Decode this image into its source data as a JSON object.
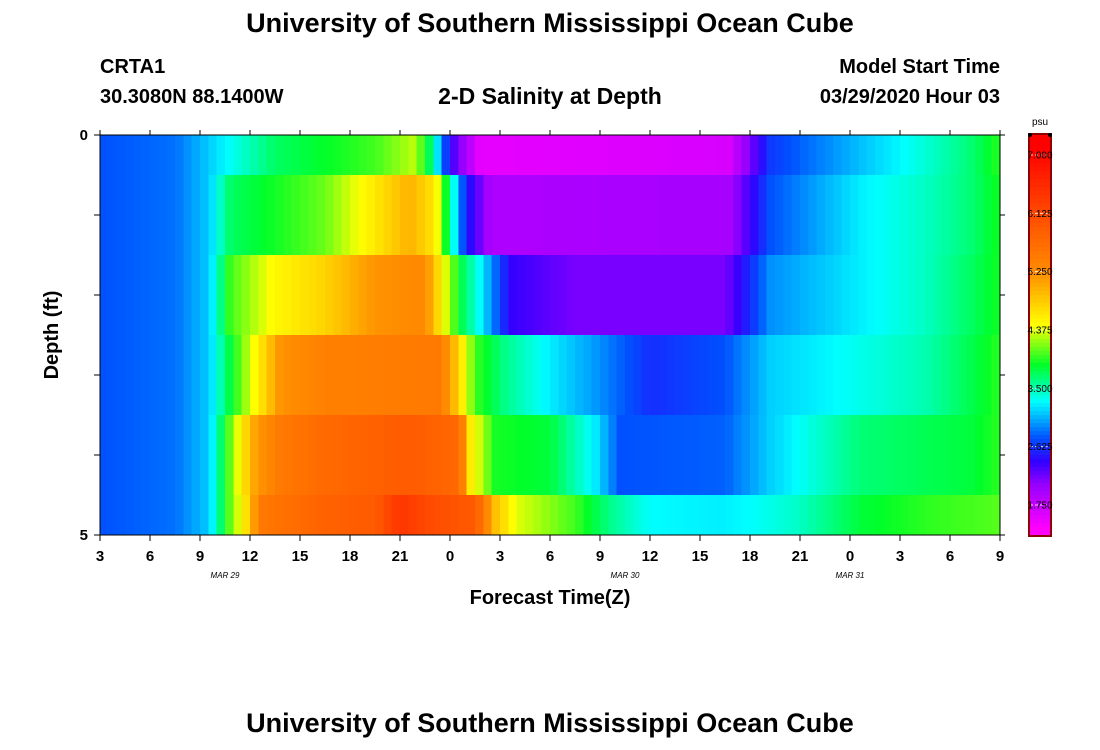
{
  "header": {
    "title": "University of Southern Mississippi Ocean Cube",
    "station_id": "CRTA1",
    "station_coords": "30.3080N 88.1400W",
    "chart_title": "2-D Salinity at Depth",
    "model_start_label": "Model Start Time",
    "model_start_value": "03/29/2020 Hour 03"
  },
  "footer": {
    "title": "University of Southern Mississippi Ocean Cube"
  },
  "chart_data": {
    "type": "heatmap",
    "title": "2-D Salinity at Depth",
    "xlabel": "Forecast Time(Z)",
    "ylabel": "Depth (ft)",
    "x_tick_labels": [
      "3",
      "6",
      "9",
      "12",
      "15",
      "18",
      "21",
      "0",
      "3",
      "6",
      "9",
      "12",
      "15",
      "18",
      "21",
      "0",
      "3",
      "6",
      "9"
    ],
    "date_labels": [
      {
        "text": "MAR  29",
        "tick_index": 2.5
      },
      {
        "text": "MAR  30",
        "tick_index": 10.5
      },
      {
        "text": "MAR  31",
        "tick_index": 15.0
      }
    ],
    "y_tick_labels": [
      "0",
      "5"
    ],
    "ylim": [
      0,
      5
    ],
    "y_minor_ticks": 5,
    "colorbar": {
      "unit": "psu",
      "min": 1.3,
      "max": 7.3,
      "tick_values": [
        1.75,
        2.625,
        3.5,
        4.375,
        5.25,
        6.125,
        7.0
      ],
      "tick_labels": [
        "1.750",
        "2.625",
        "3.500",
        "4.375",
        "5.250",
        "6.125",
        "7.000"
      ]
    },
    "rows": [
      {
        "depth_range": [
          0,
          0.5
        ],
        "knots": [
          [
            0,
            2.75
          ],
          [
            1.5,
            2.85
          ],
          [
            2.2,
            3.15
          ],
          [
            3.5,
            3.7
          ],
          [
            5.5,
            4.0
          ],
          [
            6.3,
            4.3
          ],
          [
            6.6,
            3.7
          ],
          [
            7,
            2.4
          ],
          [
            7.6,
            1.55
          ],
          [
            12.6,
            1.65
          ],
          [
            13.4,
            2.65
          ],
          [
            15.2,
            3.1
          ],
          [
            16.5,
            3.4
          ],
          [
            17.4,
            3.65
          ],
          [
            18,
            3.95
          ]
        ]
      },
      {
        "depth_range": [
          0.5,
          1.5
        ],
        "knots": [
          [
            0,
            2.75
          ],
          [
            1.5,
            2.85
          ],
          [
            2.2,
            3.15
          ],
          [
            2.6,
            3.7
          ],
          [
            4.5,
            4.1
          ],
          [
            5.5,
            4.6
          ],
          [
            6.2,
            5.0
          ],
          [
            6.7,
            4.6
          ],
          [
            7,
            3.6
          ],
          [
            7.3,
            2.6
          ],
          [
            7.8,
            1.9
          ],
          [
            12.6,
            1.95
          ],
          [
            13.4,
            2.75
          ],
          [
            15.2,
            3.25
          ],
          [
            16.5,
            3.45
          ],
          [
            17.4,
            3.65
          ],
          [
            18,
            3.9
          ]
        ]
      },
      {
        "depth_range": [
          1.5,
          2.5
        ],
        "knots": [
          [
            0,
            2.75
          ],
          [
            1.5,
            2.85
          ],
          [
            2.2,
            3.15
          ],
          [
            2.6,
            4.0
          ],
          [
            3.5,
            4.5
          ],
          [
            4.5,
            4.75
          ],
          [
            5.5,
            5.2
          ],
          [
            6.5,
            5.3
          ],
          [
            6.9,
            4.4
          ],
          [
            7.2,
            3.8
          ],
          [
            7.6,
            3.3
          ],
          [
            8.2,
            2.4
          ],
          [
            9.5,
            2.15
          ],
          [
            12.5,
            2.15
          ],
          [
            13.4,
            2.95
          ],
          [
            15.2,
            3.25
          ],
          [
            16.5,
            3.45
          ],
          [
            17.4,
            3.7
          ],
          [
            18,
            3.9
          ]
        ]
      },
      {
        "depth_range": [
          2.5,
          3.5
        ],
        "knots": [
          [
            0,
            2.75
          ],
          [
            1.5,
            2.85
          ],
          [
            2.2,
            3.15
          ],
          [
            2.6,
            3.8
          ],
          [
            3.2,
            4.6
          ],
          [
            3.6,
            5.2
          ],
          [
            4.5,
            5.4
          ],
          [
            6.8,
            5.5
          ],
          [
            7.1,
            4.9
          ],
          [
            7.5,
            4.0
          ],
          [
            8.1,
            3.6
          ],
          [
            9,
            3.25
          ],
          [
            10,
            2.95
          ],
          [
            11,
            2.6
          ],
          [
            12.5,
            2.75
          ],
          [
            13.4,
            3.15
          ],
          [
            15.2,
            3.35
          ],
          [
            16.5,
            3.5
          ],
          [
            17.4,
            3.75
          ],
          [
            18,
            3.95
          ]
        ]
      },
      {
        "depth_range": [
          3.5,
          4.5
        ],
        "knots": [
          [
            0,
            2.75
          ],
          [
            1.5,
            2.85
          ],
          [
            2.2,
            3.15
          ],
          [
            2.6,
            4.1
          ],
          [
            2.8,
            4.5
          ],
          [
            3.1,
            5.1
          ],
          [
            3.6,
            5.5
          ],
          [
            4.5,
            5.7
          ],
          [
            6.2,
            5.9
          ],
          [
            7.2,
            5.7
          ],
          [
            7.4,
            4.6
          ],
          [
            7.9,
            3.9
          ],
          [
            9,
            3.8
          ],
          [
            9.9,
            3.25
          ],
          [
            10.4,
            2.75
          ],
          [
            12.5,
            2.8
          ],
          [
            13.4,
            3.15
          ],
          [
            15.2,
            3.65
          ],
          [
            17.4,
            3.8
          ],
          [
            18,
            3.95
          ]
        ]
      },
      {
        "depth_range": [
          4.5,
          5.0
        ],
        "knots": [
          [
            0,
            2.75
          ],
          [
            1.5,
            2.85
          ],
          [
            2.2,
            3.15
          ],
          [
            2.6,
            4.1
          ],
          [
            2.9,
            4.6
          ],
          [
            3.2,
            5.5
          ],
          [
            4.5,
            5.8
          ],
          [
            5.5,
            5.9
          ],
          [
            6.0,
            6.4
          ],
          [
            6.6,
            6.1
          ],
          [
            7.5,
            5.9
          ],
          [
            7.9,
            4.9
          ],
          [
            8.3,
            4.4
          ],
          [
            9.5,
            4.0
          ],
          [
            10.2,
            3.6
          ],
          [
            11,
            3.3
          ],
          [
            12.4,
            3.25
          ],
          [
            13,
            3.3
          ],
          [
            14,
            3.45
          ],
          [
            15.2,
            3.8
          ],
          [
            16.5,
            3.95
          ],
          [
            18,
            4.05
          ]
        ]
      }
    ]
  },
  "colors": {
    "frame": "#000000",
    "colorbar_frame": "#8b0000"
  }
}
